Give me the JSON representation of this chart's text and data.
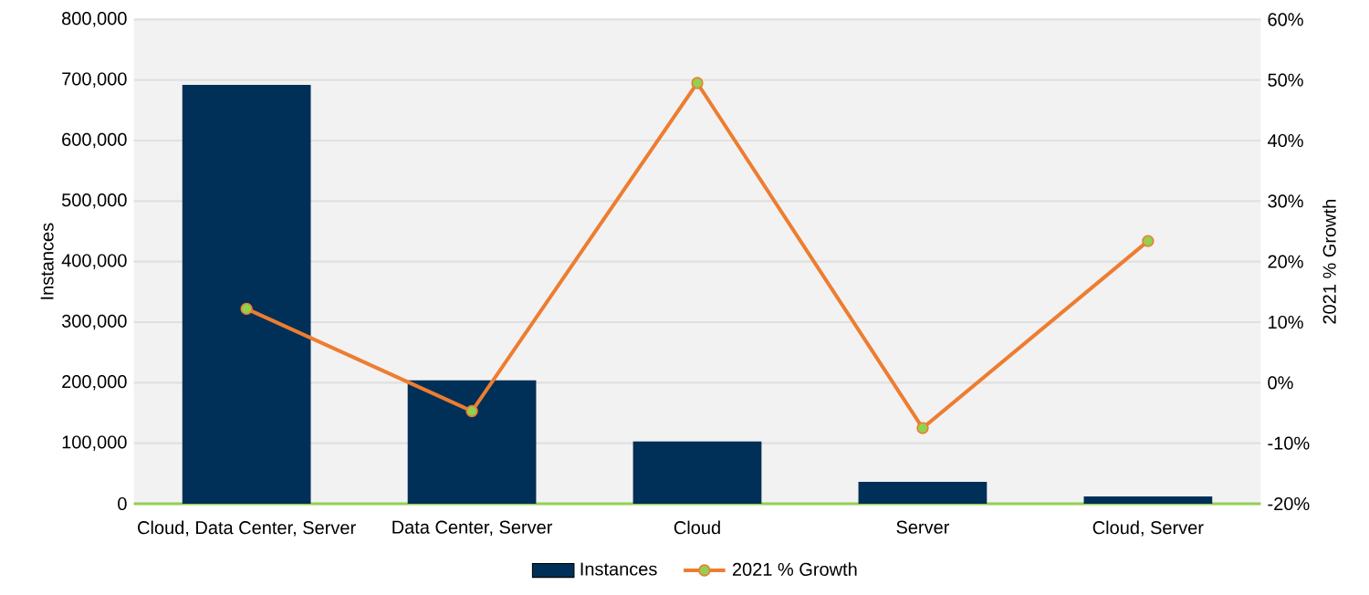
{
  "chart_data": {
    "type": "bar",
    "ylabel": "Instances",
    "y2label": "2021 % Growth",
    "categories": [
      "Cloud, Data Center, Server",
      "Data Center, Server",
      "Cloud",
      "Server",
      "Cloud, Server"
    ],
    "series": [
      {
        "name": "Instances",
        "color": "#003057",
        "values": [
          692000,
          204000,
          103000,
          36000,
          12000
        ]
      },
      {
        "name": "2021 % Growth",
        "type": "line",
        "axis": "y2",
        "color": "#ed7d31",
        "values": [
          12.2,
          -4.7,
          49.5,
          -7.5,
          23.4
        ]
      }
    ],
    "ylim": [
      0,
      800000
    ],
    "yticks": [
      0,
      {
        "value": 100000,
        "label": "100,000"
      },
      {
        "value": 200000,
        "label": "200,000"
      },
      {
        "value": 300000,
        "label": "300,000"
      },
      {
        "value": 400000,
        "label": "400,000"
      },
      {
        "value": 500000,
        "label": "500,000"
      },
      {
        "value": 600000,
        "label": "600,000"
      },
      {
        "value": 700000,
        "label": "700,000"
      },
      {
        "value": 800000,
        "label": "800,000"
      }
    ],
    "y2lim": [
      -20,
      60
    ],
    "y2ticks": [
      {
        "value": -20,
        "label": "-20%"
      },
      {
        "value": -10,
        "label": "-10%"
      },
      {
        "value": 0,
        "label": "0%"
      },
      {
        "value": 10,
        "label": "10%"
      },
      {
        "value": 20,
        "label": "20%"
      },
      {
        "value": 30,
        "label": "30%"
      },
      {
        "value": 40,
        "label": "40%"
      },
      {
        "value": 50,
        "label": "50%"
      },
      {
        "value": 60,
        "label": "60%"
      }
    ],
    "grid": "y",
    "legend": "bottom",
    "marker": "circle",
    "line_style": "solid"
  }
}
